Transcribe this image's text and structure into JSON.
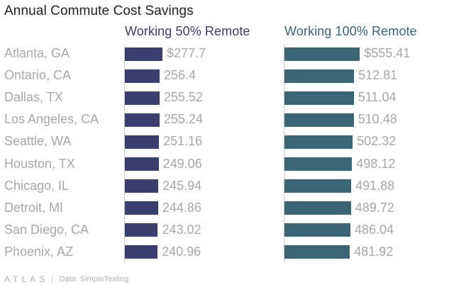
{
  "chart_data": {
    "type": "bar",
    "title": "Annual Commute Cost Savings",
    "categories": [
      "Atlanta, GA",
      "Ontario, CA",
      "Dallas, TX",
      "Los Angeles, CA",
      "Seattle, WA",
      "Houston, TX",
      "Chicago, IL",
      "Detroit, MI",
      "San Diego, CA",
      "Phoenix, AZ"
    ],
    "series": [
      {
        "name": "Working 50% Remote",
        "values": [
          277.7,
          256.4,
          255.52,
          255.24,
          251.16,
          249.06,
          245.94,
          244.86,
          243.02,
          240.96
        ],
        "labels": [
          "$277.7",
          "256.4",
          "255.52",
          "255.24",
          "251.16",
          "249.06",
          "245.94",
          "244.86",
          "243.02",
          "240.96"
        ],
        "color": "#3a3f6e",
        "header_color": "#3a3f6e",
        "max": 1150
      },
      {
        "name": "Working 100% Remote",
        "values": [
          555.41,
          512.81,
          511.04,
          510.48,
          502.32,
          498.12,
          491.88,
          489.72,
          486.04,
          481.92
        ],
        "labels": [
          "$555.41",
          "512.81",
          "511.04",
          "510.48",
          "502.32",
          "498.12",
          "491.88",
          "489.72",
          "486.04",
          "481.92"
        ],
        "color": "#3b6474",
        "header_color": "#3b6474",
        "max": 1150
      }
    ]
  },
  "footer": {
    "logo": "ATLAS",
    "separator": "|",
    "source": "Data: SimpleTexting"
  }
}
